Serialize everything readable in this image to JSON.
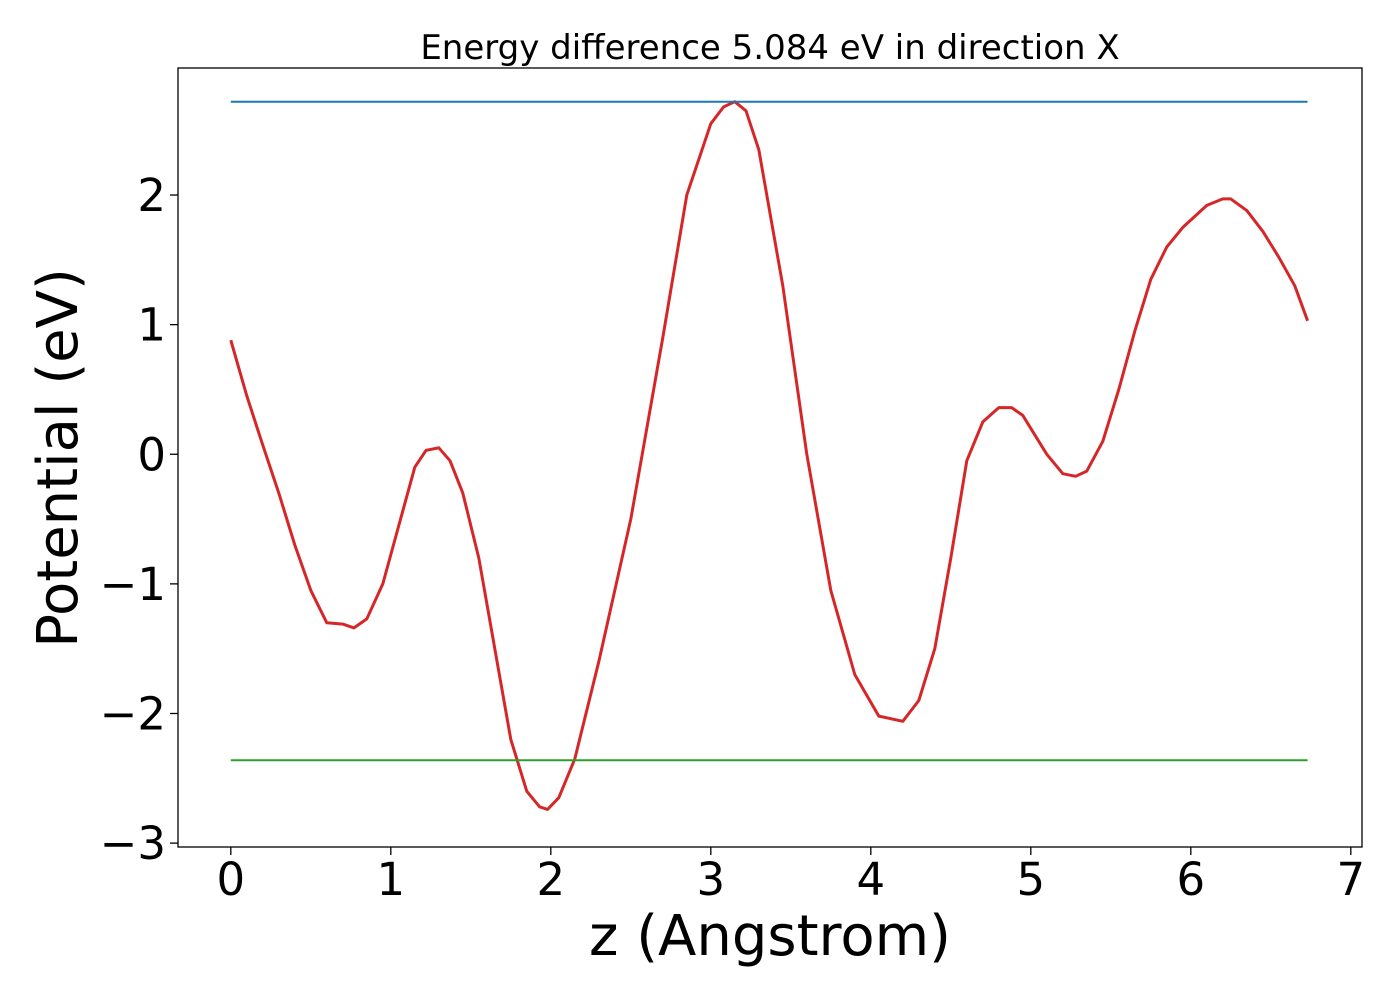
{
  "chart_data": {
    "type": "line",
    "title": "Energy difference 5.084 eV in direction X",
    "xlabel": "z (Angstrom)",
    "ylabel": "Potential (eV)",
    "xlim": [
      -0.33,
      7.07
    ],
    "ylim": [
      -3.03,
      2.98
    ],
    "xticks": [
      0,
      1,
      2,
      3,
      4,
      5,
      6,
      7
    ],
    "xtick_labels": [
      "0",
      "1",
      "2",
      "3",
      "4",
      "5",
      "6",
      "7"
    ],
    "yticks": [
      -3,
      -2,
      -1,
      0,
      1,
      2
    ],
    "ytick_labels": [
      "−3",
      "−2",
      "−1",
      "0",
      "1",
      "2"
    ],
    "grid": false,
    "series": [
      {
        "color": "#d62728",
        "x": [
          0.0,
          0.1,
          0.2,
          0.3,
          0.4,
          0.5,
          0.6,
          0.7,
          0.77,
          0.85,
          0.95,
          1.05,
          1.15,
          1.22,
          1.3,
          1.37,
          1.45,
          1.55,
          1.65,
          1.75,
          1.85,
          1.93,
          1.98,
          2.05,
          2.15,
          2.3,
          2.5,
          2.7,
          2.85,
          3.0,
          3.08,
          3.15,
          3.22,
          3.3,
          3.45,
          3.6,
          3.75,
          3.9,
          4.05,
          4.2,
          4.3,
          4.4,
          4.5,
          4.6,
          4.7,
          4.8,
          4.88,
          4.95,
          5.1,
          5.2,
          5.28,
          5.35,
          5.45,
          5.55,
          5.65,
          5.75,
          5.85,
          5.95,
          6.1,
          6.2,
          6.25,
          6.35,
          6.45,
          6.55,
          6.65,
          6.73
        ],
        "y": [
          0.88,
          0.45,
          0.07,
          -0.3,
          -0.7,
          -1.05,
          -1.3,
          -1.31,
          -1.34,
          -1.27,
          -1.0,
          -0.55,
          -0.1,
          0.03,
          0.05,
          -0.05,
          -0.3,
          -0.8,
          -1.5,
          -2.2,
          -2.6,
          -2.72,
          -2.74,
          -2.65,
          -2.35,
          -1.6,
          -0.5,
          0.9,
          2.0,
          2.55,
          2.68,
          2.72,
          2.65,
          2.35,
          1.3,
          0.0,
          -1.05,
          -1.7,
          -2.02,
          -2.06,
          -1.9,
          -1.5,
          -0.8,
          -0.05,
          0.25,
          0.36,
          0.36,
          0.3,
          0.0,
          -0.15,
          -0.17,
          -0.13,
          0.1,
          0.5,
          0.95,
          1.35,
          1.6,
          1.75,
          1.92,
          1.97,
          1.97,
          1.88,
          1.72,
          1.52,
          1.3,
          1.03
        ]
      },
      {
        "color": "#1f77b4",
        "x": [
          0.0,
          6.73
        ],
        "y": [
          2.72,
          2.72
        ]
      },
      {
        "color": "#2ca02c",
        "x": [
          0.0,
          6.73
        ],
        "y": [
          -2.36,
          -2.36
        ]
      }
    ]
  }
}
